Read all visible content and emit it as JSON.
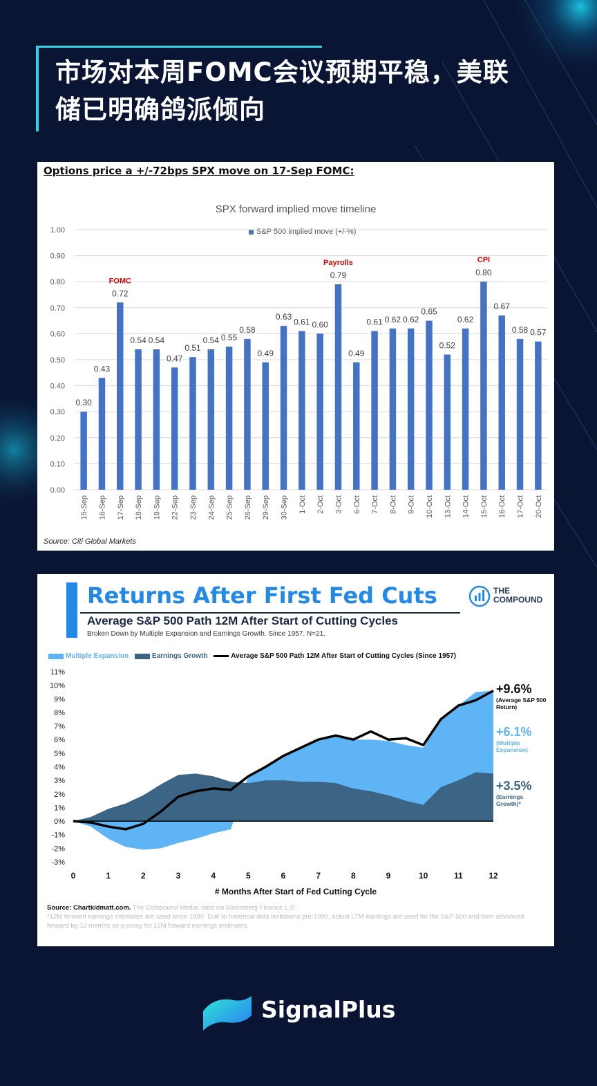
{
  "header": {
    "title_line1": "市场对本周FOMC会议预期平稳，美联",
    "title_line2": "储已明确鸽派倾向"
  },
  "card1": {
    "note": "Options price a +/-72bps SPX move on 17-Sep FOMC:",
    "source": "Source: Citi Global Markets"
  },
  "card2": {
    "title": "Returns After First Fed Cuts",
    "subtitle": "Average S&P 500 Path 12M After Start of Cutting Cycles",
    "subsubtitle": "Broken Down by Multiple Expansion and Earnings Growth. Since 1957. N=21.",
    "logo_text_1": "THE",
    "logo_text_2": "COMPOUND",
    "source_label": "Source: Chartkidmatt.com.",
    "source_rest": " The Compound Media, data via Bloomberg Finance L.P.",
    "footnote": "*12M forward earnings estimates are used since 1990. Due to historical data limitations pre-1990, actual LTM earnings are used for the S&P 500 and then advanced forward by 12 months as a proxy for 12M forward earnings estimates."
  },
  "footer": {
    "brand": "SignalPlus"
  },
  "colors": {
    "bar": "#4472c4",
    "annotation_red": "#e00000",
    "multiple": "#5fb4f5",
    "earnings": "#3b6485",
    "line": "#000000"
  },
  "chart_data": [
    {
      "type": "bar",
      "title": "SPX forward implied move timeline",
      "legend": "S&P 500 implied move (+/-%)",
      "categories": [
        "15-Sep",
        "16-Sep",
        "17-Sep",
        "18-Sep",
        "19-Sep",
        "22-Sep",
        "23-Sep",
        "24-Sep",
        "25-Sep",
        "26-Sep",
        "29-Sep",
        "30-Sep",
        "1-Oct",
        "2-Oct",
        "3-Oct",
        "6-Oct",
        "7-Oct",
        "8-Oct",
        "9-Oct",
        "10-Oct",
        "13-Oct",
        "14-Oct",
        "15-Oct",
        "16-Oct",
        "17-Oct",
        "20-Oct"
      ],
      "values": [
        0.3,
        0.43,
        0.72,
        0.54,
        0.54,
        0.47,
        0.51,
        0.54,
        0.55,
        0.58,
        0.49,
        0.63,
        0.61,
        0.6,
        0.79,
        0.49,
        0.61,
        0.62,
        0.62,
        0.65,
        0.52,
        0.62,
        0.8,
        0.67,
        0.58,
        0.57
      ],
      "value_labels": [
        "0.30",
        "0.43",
        "0.72",
        "0.54",
        "0.54",
        "0.47",
        "0.51",
        "0.54",
        "0.55",
        "0.58",
        "0.49",
        "0.63",
        "0.61",
        "0.60",
        "0.79",
        "0.49",
        "0.61",
        "0.62",
        "0.62",
        "0.65",
        "0.52",
        "0.62",
        "0.80",
        "0.67",
        "0.58",
        "0.57"
      ],
      "yticks": [
        "0.00",
        "0.10",
        "0.20",
        "0.30",
        "0.40",
        "0.50",
        "0.60",
        "0.70",
        "0.80",
        "0.90",
        "1.00"
      ],
      "ylim": [
        0,
        1.0
      ],
      "annotations": [
        {
          "category": "17-Sep",
          "text": "FOMC"
        },
        {
          "category": "3-Oct",
          "text": "Payrolls"
        },
        {
          "category": "15-Oct",
          "text": "CPI"
        }
      ],
      "grid": true
    },
    {
      "type": "area",
      "xlabel": "# Months After Start of Fed Cutting Cycle",
      "xticks": [
        "0",
        "1",
        "2",
        "3",
        "4",
        "5",
        "6",
        "7",
        "8",
        "9",
        "10",
        "11",
        "12"
      ],
      "yticks": [
        "-3%",
        "-2%",
        "-1%",
        "0%",
        "1%",
        "2%",
        "3%",
        "4%",
        "5%",
        "6%",
        "7%",
        "8%",
        "9%",
        "10%",
        "11%"
      ],
      "ylim": [
        -3,
        11
      ],
      "xlim": [
        0,
        12
      ],
      "series": [
        {
          "name": "Multiple Expansion",
          "x": [
            0,
            0.5,
            1,
            1.5,
            2,
            2.5,
            3,
            3.5,
            4,
            4.5,
            5,
            5.5,
            6,
            6.5,
            7,
            7.5,
            8,
            8.5,
            9,
            9.5,
            10,
            10.5,
            11,
            11.5,
            12
          ],
          "values": [
            0,
            -0.4,
            -1.3,
            -1.9,
            -2.1,
            -2.0,
            -1.6,
            -1.3,
            -0.9,
            -0.6,
            0.5,
            1.0,
            1.8,
            2.5,
            3.1,
            3.5,
            3.6,
            3.8,
            4.0,
            4.1,
            4.2,
            5.0,
            5.5,
            5.9,
            6.1
          ]
        },
        {
          "name": "Earnings Growth",
          "x": [
            0,
            0.5,
            1,
            1.5,
            2,
            2.5,
            3,
            3.5,
            4,
            4.5,
            5,
            5.5,
            6,
            6.5,
            7,
            7.5,
            8,
            8.5,
            9,
            9.5,
            10,
            10.5,
            11,
            11.5,
            12
          ],
          "values": [
            0,
            0.3,
            0.9,
            1.3,
            1.9,
            2.7,
            3.4,
            3.5,
            3.3,
            2.9,
            2.8,
            3.0,
            3.0,
            2.9,
            2.9,
            2.8,
            2.4,
            2.2,
            1.9,
            1.5,
            1.2,
            2.5,
            3.0,
            3.6,
            3.5
          ]
        },
        {
          "name": "Average S&P 500 Path 12M After Start of Cutting Cycles (Since 1957)",
          "x": [
            0,
            0.5,
            1,
            1.5,
            2,
            2.5,
            3,
            3.5,
            4,
            4.5,
            5,
            5.5,
            6,
            6.5,
            7,
            7.5,
            8,
            8.5,
            9,
            9.5,
            10,
            10.5,
            11,
            11.5,
            12
          ],
          "values": [
            0,
            -0.1,
            -0.4,
            -0.6,
            -0.2,
            0.7,
            1.8,
            2.2,
            2.4,
            2.3,
            3.3,
            4.0,
            4.8,
            5.4,
            6.0,
            6.3,
            6.0,
            6.6,
            6.0,
            6.1,
            5.6,
            7.5,
            8.5,
            8.9,
            9.6
          ]
        }
      ],
      "annotations": [
        {
          "value": "+9.6%",
          "label": "(Average S&P 500 Return)"
        },
        {
          "value": "+6.1%",
          "label": "(Multiple Expansion)"
        },
        {
          "value": "+3.5%",
          "label": "(Earnings Growth)*"
        }
      ]
    }
  ]
}
